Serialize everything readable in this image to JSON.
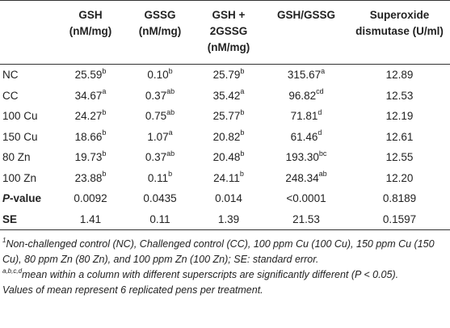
{
  "table": {
    "headers": [
      "",
      "GSH\n(nM/mg)",
      "GSSG\n(nM/mg)",
      "GSH +\n2GSSG\n(nM/mg)",
      "GSH/GSSG",
      "Superoxide\ndismutase (U/ml)"
    ],
    "rows": [
      {
        "label": "NC",
        "bold": false,
        "cells": [
          [
            "25.59",
            "b"
          ],
          [
            "0.10",
            "b"
          ],
          [
            "25.79",
            "b"
          ],
          [
            "315.67",
            "a"
          ],
          [
            "12.89",
            ""
          ]
        ]
      },
      {
        "label": "CC",
        "bold": false,
        "cells": [
          [
            "34.67",
            "a"
          ],
          [
            "0.37",
            "ab"
          ],
          [
            "35.42",
            "a"
          ],
          [
            "96.82",
            "cd"
          ],
          [
            "12.53",
            ""
          ]
        ]
      },
      {
        "label": "100 Cu",
        "bold": false,
        "cells": [
          [
            "24.27",
            "b"
          ],
          [
            "0.75",
            "ab"
          ],
          [
            "25.77",
            "b"
          ],
          [
            "71.81",
            "d"
          ],
          [
            "12.19",
            ""
          ]
        ]
      },
      {
        "label": "150 Cu",
        "bold": false,
        "cells": [
          [
            "18.66",
            "b"
          ],
          [
            "1.07",
            "a"
          ],
          [
            "20.82",
            "b"
          ],
          [
            "61.46",
            "d"
          ],
          [
            "12.61",
            ""
          ]
        ]
      },
      {
        "label": "80 Zn",
        "bold": false,
        "cells": [
          [
            "19.73",
            "b"
          ],
          [
            "0.37",
            "ab"
          ],
          [
            "20.48",
            "b"
          ],
          [
            "193.30",
            "bc"
          ],
          [
            "12.55",
            ""
          ]
        ]
      },
      {
        "label": "100 Zn",
        "bold": false,
        "cells": [
          [
            "23.88",
            "b"
          ],
          [
            "0.11",
            "b"
          ],
          [
            "24.11",
            "b"
          ],
          [
            "248.34",
            "ab"
          ],
          [
            "12.20",
            ""
          ]
        ]
      },
      {
        "label": "P-value",
        "bold": true,
        "cells": [
          [
            "0.0092",
            ""
          ],
          [
            "0.0435",
            ""
          ],
          [
            "0.014",
            ""
          ],
          [
            "<0.0001",
            ""
          ],
          [
            "0.8189",
            ""
          ]
        ]
      },
      {
        "label": "SE",
        "bold": true,
        "cells": [
          [
            "1.41",
            ""
          ],
          [
            "0.11",
            ""
          ],
          [
            "1.39",
            ""
          ],
          [
            "21.53",
            ""
          ],
          [
            "0.1597",
            ""
          ]
        ]
      }
    ]
  },
  "footnotes": {
    "note1_sup": "1",
    "note1": "Non-challenged control (NC), Challenged control (CC), 100 ppm Cu (100 Cu), 150 ppm Cu (150 Cu), 80 ppm Zn (80 Zn), and 100 ppm Zn (100 Zn); SE: standard error.",
    "note2_sup": "a,b,c,d",
    "note2": "mean within a column with different superscripts are significantly different (P < 0.05).",
    "note3": "Values of mean represent 6 replicated pens per treatment."
  }
}
